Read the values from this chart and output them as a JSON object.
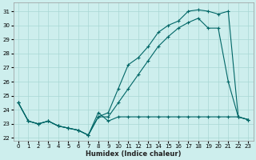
{
  "xlabel": "Humidex (Indice chaleur)",
  "xlim": [
    -0.5,
    23.5
  ],
  "ylim": [
    21.8,
    31.6
  ],
  "yticks": [
    22,
    23,
    24,
    25,
    26,
    27,
    28,
    29,
    30,
    31
  ],
  "xticks": [
    0,
    1,
    2,
    3,
    4,
    5,
    6,
    7,
    8,
    9,
    10,
    11,
    12,
    13,
    14,
    15,
    16,
    17,
    18,
    19,
    20,
    21,
    22,
    23
  ],
  "bg_color": "#cdeeed",
  "grid_color": "#a8d8d4",
  "line_color": "#006666",
  "figsize": [
    3.2,
    2.0
  ],
  "dpi": 100,
  "line1_y": [
    24.5,
    23.2,
    23.0,
    23.2,
    22.85,
    22.7,
    22.55,
    22.2,
    23.5,
    23.8,
    25.5,
    27.2,
    27.7,
    28.5,
    29.5,
    30.0,
    30.3,
    31.0,
    31.1,
    31.0,
    30.8,
    31.0,
    23.5,
    23.3
  ],
  "line2_y": [
    24.5,
    23.2,
    23.0,
    23.2,
    22.85,
    22.7,
    22.55,
    22.2,
    23.5,
    23.5,
    24.5,
    25.5,
    26.5,
    27.5,
    28.5,
    29.2,
    29.8,
    30.2,
    30.5,
    29.8,
    29.8,
    26.0,
    23.5,
    23.3
  ],
  "line3_y": [
    24.5,
    23.2,
    23.0,
    23.2,
    22.85,
    22.7,
    22.55,
    22.2,
    23.8,
    23.2,
    23.5,
    23.5,
    23.5,
    23.5,
    23.5,
    23.5,
    23.5,
    23.5,
    23.5,
    23.5,
    23.5,
    23.5,
    23.5,
    23.3
  ]
}
